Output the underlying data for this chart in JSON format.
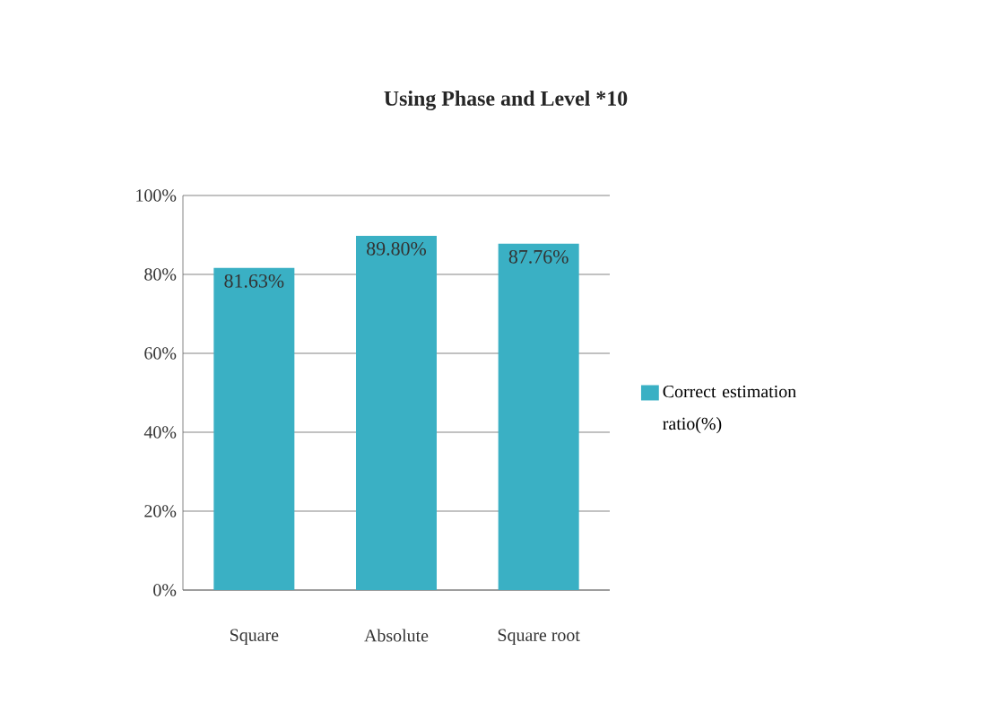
{
  "chart_data": {
    "type": "bar",
    "title": "Using Phase and Level *10",
    "categories": [
      "Square",
      "Absolute",
      "Square root"
    ],
    "series": [
      {
        "name": "Correct estimation ratio(%)",
        "color": "#3ab0c4",
        "values": [
          81.63,
          89.8,
          87.76
        ],
        "value_labels": [
          "81.63%",
          "89.80%",
          "87.76%"
        ]
      }
    ],
    "ylim": [
      0,
      100
    ],
    "yticks": [
      {
        "value": 0,
        "label": "0%"
      },
      {
        "value": 20,
        "label": "20%"
      },
      {
        "value": 40,
        "label": "40%"
      },
      {
        "value": 60,
        "label": "60%"
      },
      {
        "value": 80,
        "label": "80%"
      },
      {
        "value": 100,
        "label": "100%"
      }
    ],
    "grid": "y",
    "legend": "right"
  }
}
